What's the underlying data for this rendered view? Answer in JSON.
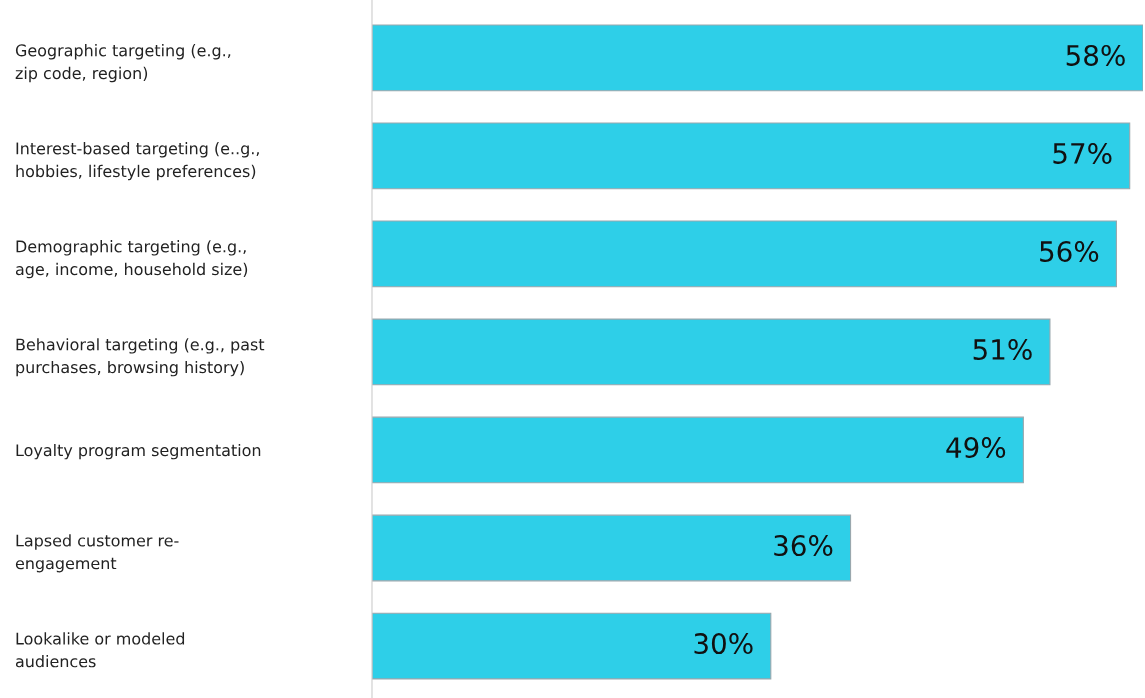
{
  "chart_data": {
    "type": "bar",
    "orientation": "horizontal",
    "categories": [
      "Geographic targeting (e.g.,\nzip code, region)",
      "Interest-based targeting (e..g.,\nhobbies, lifestyle preferences)",
      "Demographic targeting (e.g.,\nage, income, household size)",
      "Behavioral targeting (e.g., past\npurchases, browsing history)",
      "Loyalty program segmentation",
      "Lapsed customer re-\nengagement",
      "Lookalike or modeled\naudiences"
    ],
    "values": [
      58,
      57,
      56,
      51,
      49,
      36,
      30
    ],
    "value_labels": [
      "58%",
      "57%",
      "56%",
      "51%",
      "49%",
      "36%",
      "30%"
    ],
    "color": "#2ecfe8",
    "grid": false,
    "legend": false
  }
}
